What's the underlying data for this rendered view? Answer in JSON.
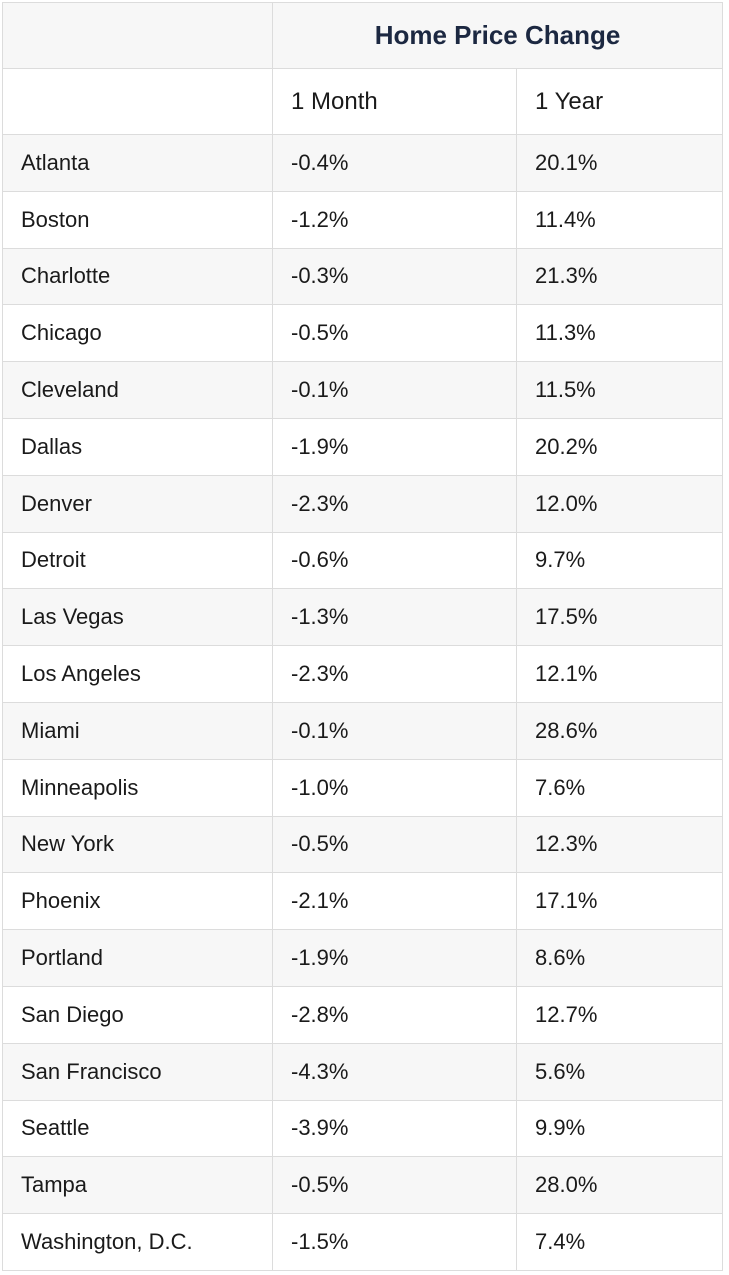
{
  "table": {
    "title": "Home Price Change",
    "columns": [
      "1 Month",
      "1 Year"
    ],
    "rows": [
      {
        "city": "Atlanta",
        "month": "-0.4%",
        "year": "20.1%"
      },
      {
        "city": "Boston",
        "month": "-1.2%",
        "year": "11.4%"
      },
      {
        "city": "Charlotte",
        "month": "-0.3%",
        "year": "21.3%"
      },
      {
        "city": "Chicago",
        "month": "-0.5%",
        "year": "11.3%"
      },
      {
        "city": "Cleveland",
        "month": "-0.1%",
        "year": "11.5%"
      },
      {
        "city": "Dallas",
        "month": "-1.9%",
        "year": "20.2%"
      },
      {
        "city": "Denver",
        "month": "-2.3%",
        "year": "12.0%"
      },
      {
        "city": "Detroit",
        "month": "-0.6%",
        "year": "9.7%"
      },
      {
        "city": "Las Vegas",
        "month": "-1.3%",
        "year": "17.5%"
      },
      {
        "city": "Los Angeles",
        "month": "-2.3%",
        "year": "12.1%"
      },
      {
        "city": "Miami",
        "month": "-0.1%",
        "year": "28.6%"
      },
      {
        "city": "Minneapolis",
        "month": "-1.0%",
        "year": "7.6%"
      },
      {
        "city": "New York",
        "month": "-0.5%",
        "year": "12.3%"
      },
      {
        "city": "Phoenix",
        "month": "-2.1%",
        "year": "17.1%"
      },
      {
        "city": "Portland",
        "month": "-1.9%",
        "year": "8.6%"
      },
      {
        "city": "San Diego",
        "month": "-2.8%",
        "year": "12.7%"
      },
      {
        "city": "San Francisco",
        "month": "-4.3%",
        "year": "5.6%"
      },
      {
        "city": "Seattle",
        "month": "-3.9%",
        "year": "9.9%"
      },
      {
        "city": "Tampa",
        "month": "-0.5%",
        "year": "28.0%"
      },
      {
        "city": "Washington, D.C.",
        "month": "-1.5%",
        "year": "7.4%"
      }
    ]
  },
  "colors": {
    "title": "#1c2841",
    "border": "#dcdcdc",
    "stripe": "#f7f7f7"
  }
}
